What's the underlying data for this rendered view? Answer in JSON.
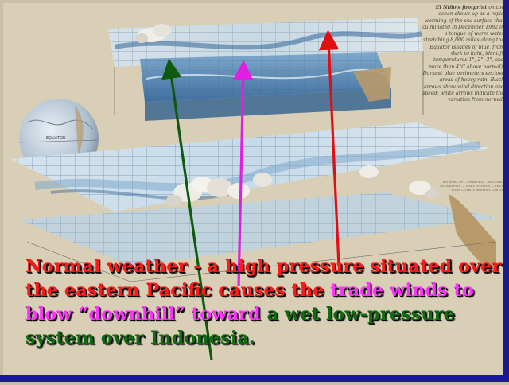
{
  "sidenote": {
    "heading": "El Niño's footprint",
    "body": "on the ocean shows up as a rapid warming of the sea surface that culminated in December 1982 in a tongue of warm water stretching 8,000 miles along the Equator (shades of blue, from dark to light, identify temperatures 1°, 2°, 3°, and more than 4°C above normal). Darkest blue perimeters enclose areas of heavy rain. Black arrows show wind direction and speed; white arrows indicate the variation from normal."
  },
  "credit": "ARTWORK BY ... PAINTING ... NATIONAL GEOGRAPHIC ... MAPS DIVISION ... FROM NOAA CLIMATE ANALYSIS CENTER",
  "globe_label": "EQUATOR",
  "caption": {
    "part1": "Normal weather - a high pressure situated over the eastern Pacific causes the ",
    "part2": "trade winds to blow “downhill” toward ",
    "part3": "a wet low-pressure system over Indonesia."
  },
  "colors": {
    "red_arrow": "#e01010",
    "magenta_arrow": "#e020e0",
    "green_arrow": "#0f5a0f",
    "ocean_light": "#b9d3e6",
    "ocean_mid": "#7fa9cc",
    "ocean_dark": "#3f6f9e",
    "land": "#b89a6a",
    "border_blue": "#1a1a8a"
  }
}
